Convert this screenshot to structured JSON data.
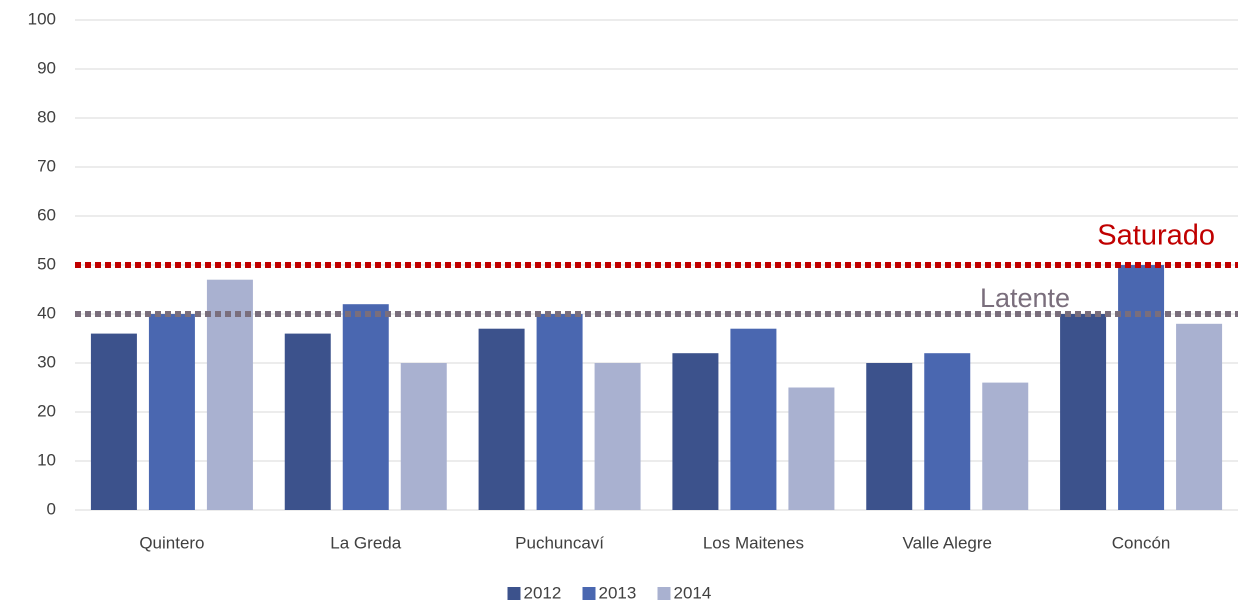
{
  "chart_data": {
    "type": "bar",
    "categories": [
      "Quintero",
      "La Greda",
      "Puchuncaví",
      "Los Maitenes",
      "Valle Alegre",
      "Concón"
    ],
    "series": [
      {
        "name": "2012",
        "color": "#3c528c",
        "values": [
          36,
          36,
          37,
          32,
          30,
          40
        ]
      },
      {
        "name": "2013",
        "color": "#4a67b0",
        "values": [
          40,
          42,
          40,
          37,
          32,
          50
        ]
      },
      {
        "name": "2014",
        "color": "#a9b1d0",
        "values": [
          47,
          30,
          30,
          25,
          26,
          38
        ]
      }
    ],
    "reference_lines": [
      {
        "label": "Saturado",
        "value": 50,
        "color": "#c00000"
      },
      {
        "label": "Latente",
        "value": 40,
        "color": "#7a6e7c"
      }
    ],
    "ylim": [
      0,
      100
    ],
    "yticks": [
      0,
      10,
      20,
      30,
      40,
      50,
      60,
      70,
      80,
      90,
      100
    ],
    "grid": true,
    "legend": "bottom"
  }
}
